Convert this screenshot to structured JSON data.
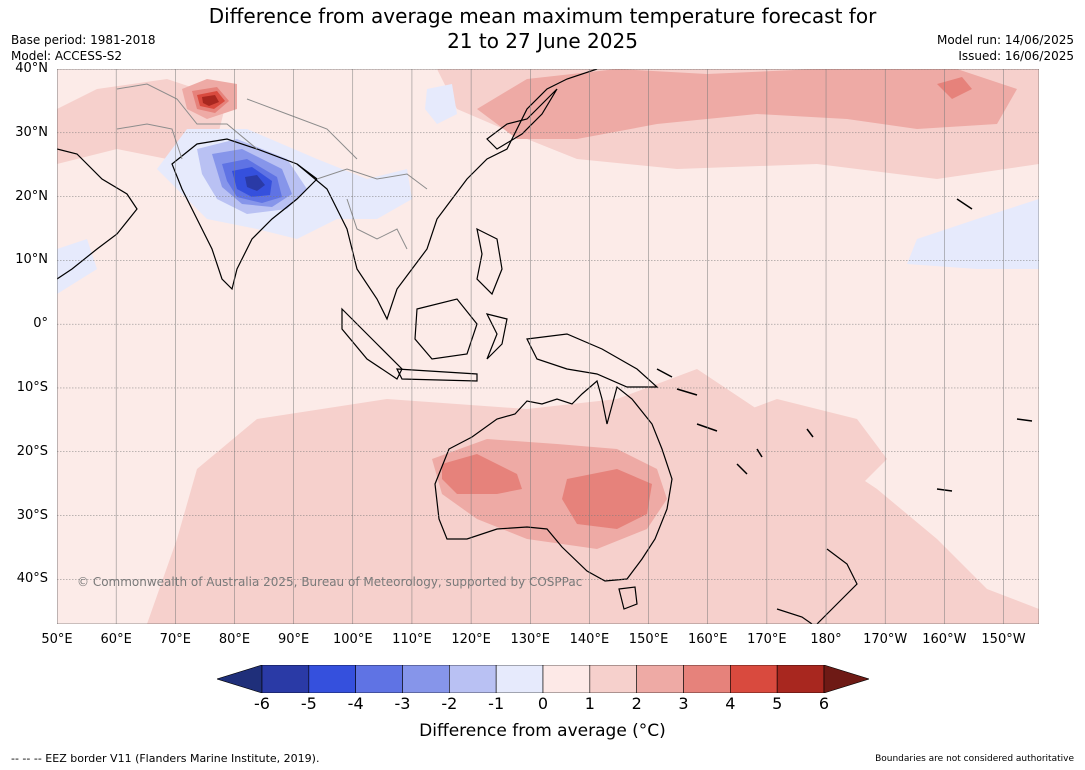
{
  "title_line1": "Difference from average mean maximum temperature forecast for",
  "title_line2": "21 to 27 June 2025",
  "base_period": "Base period: 1981-2018",
  "model": "Model: ACCESS-S2",
  "model_run": "Model run: 14/06/2025",
  "issued": "Issued: 16/06/2025",
  "copyright": "© Commonwealth of Australia 2025, Bureau of Meteorology, supported by COSPPac",
  "eez_note": "--  --  -- EEZ border V11 (Flanders Marine Institute, 2019).",
  "boundary_note": "Boundaries are not considered authoritative",
  "map": {
    "lon_range": [
      50,
      216
    ],
    "lat_range": [
      -47,
      40
    ],
    "gridlines": true,
    "lat_labels": [
      {
        "v": 40,
        "t": "40°N"
      },
      {
        "v": 30,
        "t": "30°N"
      },
      {
        "v": 20,
        "t": "20°N"
      },
      {
        "v": 10,
        "t": "10°N"
      },
      {
        "v": 0,
        "t": "0°"
      },
      {
        "v": -10,
        "t": "10°S"
      },
      {
        "v": -20,
        "t": "20°S"
      },
      {
        "v": -30,
        "t": "30°S"
      },
      {
        "v": -40,
        "t": "40°S"
      }
    ],
    "lon_labels": [
      {
        "v": 50,
        "t": "50°E"
      },
      {
        "v": 60,
        "t": "60°E"
      },
      {
        "v": 70,
        "t": "70°E"
      },
      {
        "v": 80,
        "t": "80°E"
      },
      {
        "v": 90,
        "t": "90°E"
      },
      {
        "v": 100,
        "t": "100°E"
      },
      {
        "v": 110,
        "t": "110°E"
      },
      {
        "v": 120,
        "t": "120°E"
      },
      {
        "v": 130,
        "t": "130°E"
      },
      {
        "v": 140,
        "t": "140°E"
      },
      {
        "v": 150,
        "t": "150°E"
      },
      {
        "v": 160,
        "t": "160°E"
      },
      {
        "v": 170,
        "t": "170°E"
      },
      {
        "v": 180,
        "t": "180°"
      },
      {
        "v": 190,
        "t": "170°W"
      },
      {
        "v": 200,
        "t": "160°W"
      },
      {
        "v": 210,
        "t": "150°W"
      }
    ]
  },
  "colorbar": {
    "title": "Difference from average ($^\\circ$C)",
    "title_display": "Difference from average (°C)",
    "ticks": [
      "-6",
      "-5",
      "-4",
      "-3",
      "-2",
      "-1",
      "0",
      "1",
      "2",
      "3",
      "4",
      "5",
      "6"
    ],
    "under_color": "#1f2f7a",
    "over_color": "#6e1a15",
    "colors": [
      "#2a3aa6",
      "#3550dd",
      "#5f73e4",
      "#8695ea",
      "#b9c1f3",
      "#e6eafc",
      "#fde9e7",
      "#f6d0cc",
      "#eeaaa5",
      "#e6827b",
      "#d94a3e",
      "#a8271f"
    ]
  },
  "colors": {
    "base_anomaly": "#fcebe8",
    "land_outline": "#000000",
    "border": "#8c8c8c",
    "grid": "#7a7a7a"
  }
}
